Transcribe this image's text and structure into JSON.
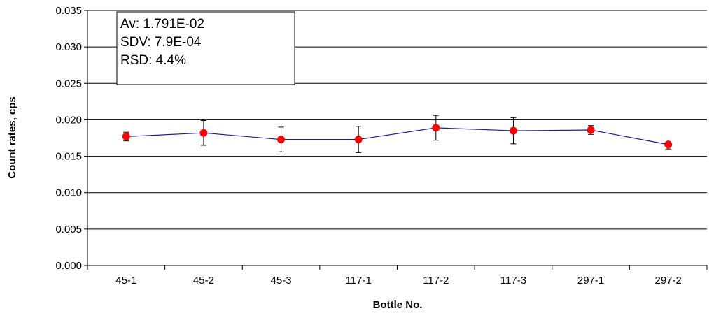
{
  "chart_data": {
    "type": "line",
    "title": "",
    "xlabel": "Bottle No.",
    "ylabel": "Count rates, cps",
    "categories": [
      "45-1",
      "45-2",
      "45-3",
      "117-1",
      "117-2",
      "117-3",
      "297-1",
      "297-2"
    ],
    "series": [
      {
        "values": [
          0.0177,
          0.0182,
          0.0173,
          0.0173,
          0.0189,
          0.0185,
          0.0186,
          0.0166
        ],
        "error": [
          0.0006,
          0.0017,
          0.0017,
          0.0018,
          0.0017,
          0.0018,
          0.0006,
          0.0006
        ],
        "line_color": "#1f1f8f",
        "marker_color": "#ff0000"
      }
    ],
    "ylim": [
      0,
      0.035
    ],
    "yticks": [
      "0.000",
      "0.005",
      "0.010",
      "0.015",
      "0.020",
      "0.025",
      "0.030",
      "0.035"
    ],
    "grid": true,
    "legend": "none",
    "annotation": {
      "lines": [
        "Av: 1.791E-02",
        "SDV: 7.9E-04",
        "RSD: 4.4%"
      ]
    }
  }
}
